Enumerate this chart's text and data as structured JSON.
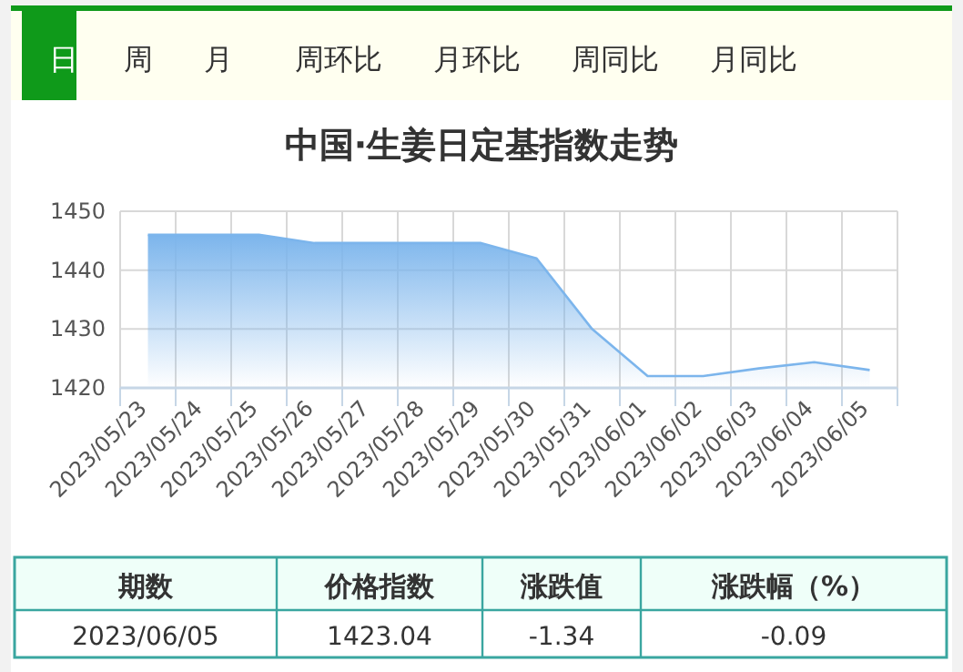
{
  "chart_data": {
    "type": "area",
    "title": "中国·生姜日定基指数走势",
    "categories": [
      "2023/05/23",
      "2023/05/24",
      "2023/05/25",
      "2023/05/26",
      "2023/05/27",
      "2023/05/28",
      "2023/05/29",
      "2023/05/30",
      "2023/05/31",
      "2023/06/01",
      "2023/06/02",
      "2023/06/03",
      "2023/06/04",
      "2023/06/05"
    ],
    "values": [
      1446,
      1446,
      1446,
      1444.6,
      1444.6,
      1444.6,
      1444.6,
      1442,
      1430,
      1422,
      1422,
      1423.3,
      1424.38,
      1423.04
    ],
    "color": "#7cb5ec",
    "ylim": [
      1420,
      1450
    ],
    "yticks": [
      1420,
      1430,
      1440,
      1450
    ],
    "grid": true,
    "annotations": [
      "日",
      "周",
      "月",
      "周环比",
      "月环比",
      "周同比",
      "月同比",
      "期数",
      "价格指数",
      "涨跌值",
      "涨跌幅（%）",
      "2023/06/05",
      "1423.04",
      "-1.34",
      "-0.09"
    ]
  }
}
